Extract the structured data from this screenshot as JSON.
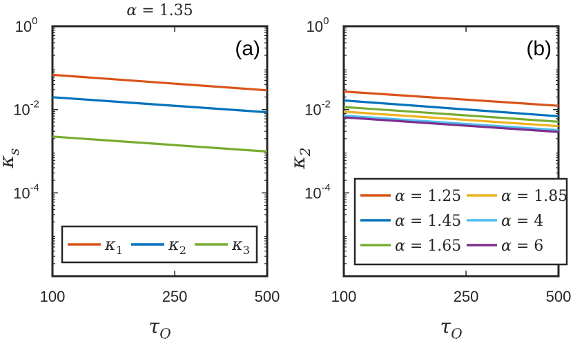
{
  "chart_data": [
    {
      "type": "line",
      "panel_label": "(a)",
      "title": "α = 1.35",
      "title_symbol": "α",
      "title_rest": " = 1.35",
      "xlabel_base": "τ",
      "xlabel_sub": "Q",
      "ylabel_base": "κ",
      "ylabel_sub": "s",
      "xscale": "log",
      "yscale": "log",
      "xlim": [
        100,
        500
      ],
      "ylim": [
        1e-06,
        1
      ],
      "xticks": [
        100,
        250,
        500
      ],
      "xtick_labels": [
        "100",
        "250",
        "500"
      ],
      "yticks": [
        1,
        0.01,
        0.0001
      ],
      "ytick_labels": [
        {
          "base": "10",
          "exp": "0"
        },
        {
          "base": "10",
          "exp": "-2"
        },
        {
          "base": "10",
          "exp": "-4"
        }
      ],
      "grid": false,
      "legend_position": "bottom",
      "legend_columns": 3,
      "series": [
        {
          "name": "κ1",
          "label_base": "κ",
          "label_sub": "1",
          "color": "#D95319",
          "x": [
            100,
            500
          ],
          "y": [
            0.068,
            0.029
          ]
        },
        {
          "name": "κ2",
          "label_base": "κ",
          "label_sub": "2",
          "color": "#0072BD",
          "x": [
            100,
            500
          ],
          "y": [
            0.0198,
            0.0086
          ]
        },
        {
          "name": "κ3",
          "label_base": "κ",
          "label_sub": "3",
          "color": "#77AC30",
          "x": [
            100,
            500
          ],
          "y": [
            0.00225,
            0.00098
          ]
        }
      ]
    },
    {
      "type": "line",
      "panel_label": "(b)",
      "xlabel_base": "τ",
      "xlabel_sub": "Q",
      "ylabel_base": "κ",
      "ylabel_sub": "2",
      "xscale": "log",
      "yscale": "log",
      "xlim": [
        100,
        500
      ],
      "ylim": [
        1e-06,
        1
      ],
      "xticks": [
        100,
        250,
        500
      ],
      "xtick_labels": [
        "100",
        "250",
        "500"
      ],
      "yticks": [
        1,
        0.01,
        0.0001
      ],
      "ytick_labels": [
        {
          "base": "10",
          "exp": "0"
        },
        {
          "base": "10",
          "exp": "-2"
        },
        {
          "base": "10",
          "exp": "-4"
        }
      ],
      "grid": false,
      "legend_position": "bottom",
      "legend_columns": 2,
      "series": [
        {
          "name": "α = 1.25",
          "label_base": "α",
          "label_rest": " = 1.25",
          "color": "#D95319",
          "x": [
            100,
            500
          ],
          "y": [
            0.027,
            0.0123
          ]
        },
        {
          "name": "α = 1.45",
          "label_base": "α",
          "label_rest": " = 1.45",
          "color": "#0072BD",
          "x": [
            100,
            500
          ],
          "y": [
            0.0165,
            0.0069
          ]
        },
        {
          "name": "α = 1.65",
          "label_base": "α",
          "label_rest": " = 1.65",
          "color": "#77AC30",
          "x": [
            100,
            500
          ],
          "y": [
            0.0115,
            0.0051
          ]
        },
        {
          "name": "α = 1.85",
          "label_base": "α",
          "label_rest": " = 1.85",
          "color": "#EDB120",
          "x": [
            100,
            500
          ],
          "y": [
            0.0089,
            0.004
          ]
        },
        {
          "name": "α = 4",
          "label_base": "α",
          "label_rest": " = 4",
          "color": "#4DBEEE",
          "x": [
            100,
            500
          ],
          "y": [
            0.0071,
            0.0032
          ]
        },
        {
          "name": "α = 6",
          "label_base": "α",
          "label_rest": " = 6",
          "color": "#7E2F8E",
          "x": [
            100,
            500
          ],
          "y": [
            0.0065,
            0.0029
          ]
        }
      ]
    }
  ]
}
